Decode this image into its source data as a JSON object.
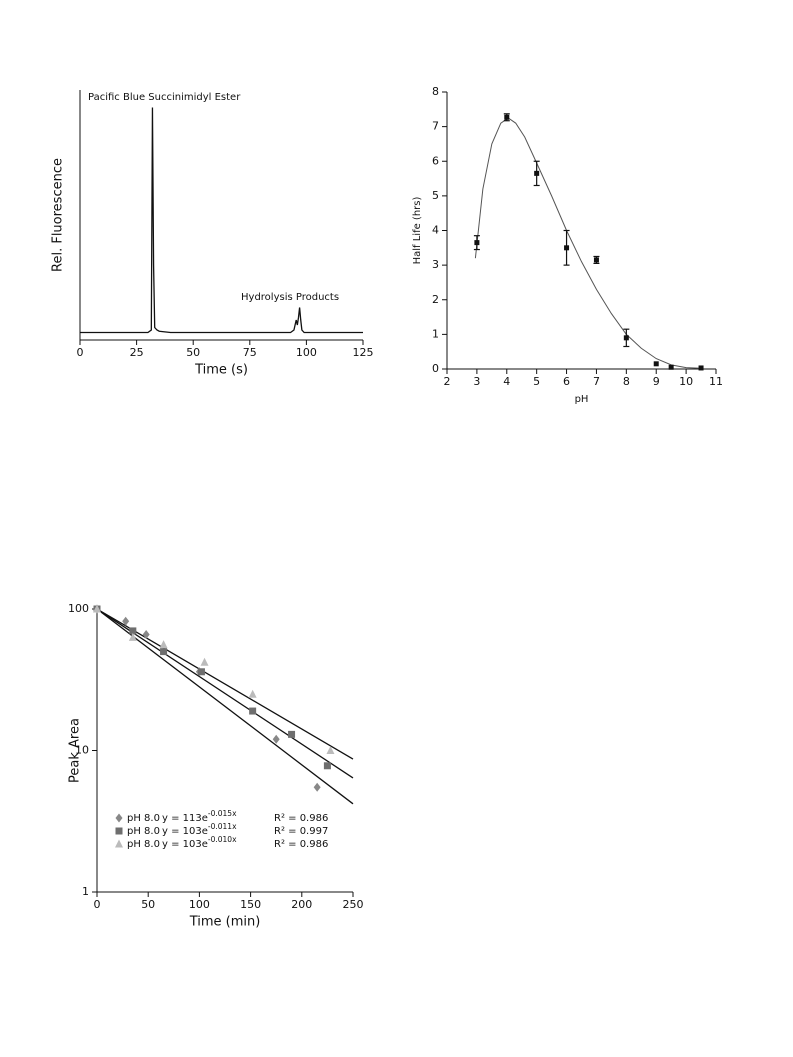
{
  "chart_data": [
    {
      "type": "line",
      "xlabel": "Time (s)",
      "ylabel": "Rel. Fluorescence",
      "annotations": [
        "Pacific Blue Succinimidyl Ester",
        "Hydrolysis Products"
      ],
      "x": [
        0,
        30,
        31.5,
        32,
        32.5,
        33,
        34,
        35,
        40,
        93,
        94.5,
        95.5,
        96,
        96.5,
        97,
        97.5,
        98,
        99,
        125
      ],
      "values": [
        3,
        3,
        4,
        93,
        30,
        5,
        4,
        3.5,
        3,
        3,
        4,
        8,
        6,
        9,
        13,
        8,
        4,
        3,
        3
      ],
      "color": "#111",
      "xlim": [
        0,
        125
      ],
      "xticks": [
        0,
        25,
        50,
        75,
        100,
        125
      ],
      "ylim": [
        0,
        100
      ]
    },
    {
      "type": "scatter",
      "xlabel": "pH",
      "ylabel": "Half Life (hrs)",
      "x": [
        3,
        4,
        5,
        6,
        7,
        8,
        9,
        9.5,
        10.5
      ],
      "values": [
        3.65,
        7.27,
        5.65,
        3.5,
        3.15,
        0.9,
        0.15,
        0.05,
        0.03
      ],
      "errors": [
        0.2,
        0.1,
        0.35,
        0.5,
        0.1,
        0.25,
        0,
        0,
        0
      ],
      "fit": {
        "x": [
          2.95,
          3.2,
          3.5,
          3.8,
          4.05,
          4.3,
          4.6,
          5,
          5.5,
          6,
          6.5,
          7,
          7.5,
          8,
          8.5,
          9,
          9.5,
          10,
          10.5
        ],
        "values": [
          3.2,
          5.2,
          6.5,
          7.1,
          7.25,
          7.1,
          6.7,
          5.95,
          5.0,
          4.0,
          3.1,
          2.3,
          1.6,
          1.0,
          0.6,
          0.3,
          0.12,
          0.04,
          0.02
        ]
      },
      "color": "#111",
      "fit_color": "#555",
      "xlim": [
        2,
        11
      ],
      "xticks": [
        2,
        3,
        4,
        5,
        6,
        7,
        8,
        9,
        10,
        11
      ],
      "ylim": [
        0,
        8
      ],
      "yticks": [
        0,
        1,
        2,
        3,
        4,
        5,
        6,
        7,
        8
      ]
    },
    {
      "type": "scatter",
      "xlabel": "Time (min)",
      "ylabel": "Peak Area",
      "y_scale": "log",
      "legend": "lower left",
      "xlim": [
        0,
        250
      ],
      "xticks": [
        0,
        50,
        100,
        150,
        200,
        250
      ],
      "ylim": [
        1,
        100
      ],
      "yticks": [
        1,
        10,
        100
      ],
      "fit_color": "#111",
      "series": [
        {
          "name": "pH 8.0",
          "marker": "diamond",
          "color": "#888",
          "equation": "y = 113e",
          "exponent": "-0.015x",
          "r2": "R² = 0.986",
          "x": [
            0,
            28,
            48,
            100,
            175,
            215
          ],
          "values": [
            100,
            82,
            66,
            36,
            12,
            5.5
          ],
          "fit": {
            "x": [
              0,
              250
            ],
            "values": [
              100,
              4.2
            ]
          }
        },
        {
          "name": "pH 8.0",
          "marker": "square",
          "color": "#6e6e6e",
          "equation": "y = 103e",
          "exponent": "-0.011x",
          "r2": "R² = 0.997",
          "x": [
            0,
            35,
            65,
            102,
            152,
            190,
            225
          ],
          "values": [
            100,
            70,
            50,
            36,
            19,
            13,
            7.8
          ],
          "fit": {
            "x": [
              0,
              250
            ],
            "values": [
              100,
              6.4
            ]
          }
        },
        {
          "name": "pH 8.0",
          "marker": "triangle",
          "color": "#bbb",
          "equation": "y = 103e",
          "exponent": "-0.010x",
          "r2": "R² = 0.986",
          "x": [
            0,
            35,
            65,
            105,
            152,
            228
          ],
          "values": [
            100,
            63,
            56,
            42,
            25,
            10
          ],
          "fit": {
            "x": [
              0,
              250
            ],
            "values": [
              100,
              8.7
            ]
          }
        }
      ]
    }
  ]
}
